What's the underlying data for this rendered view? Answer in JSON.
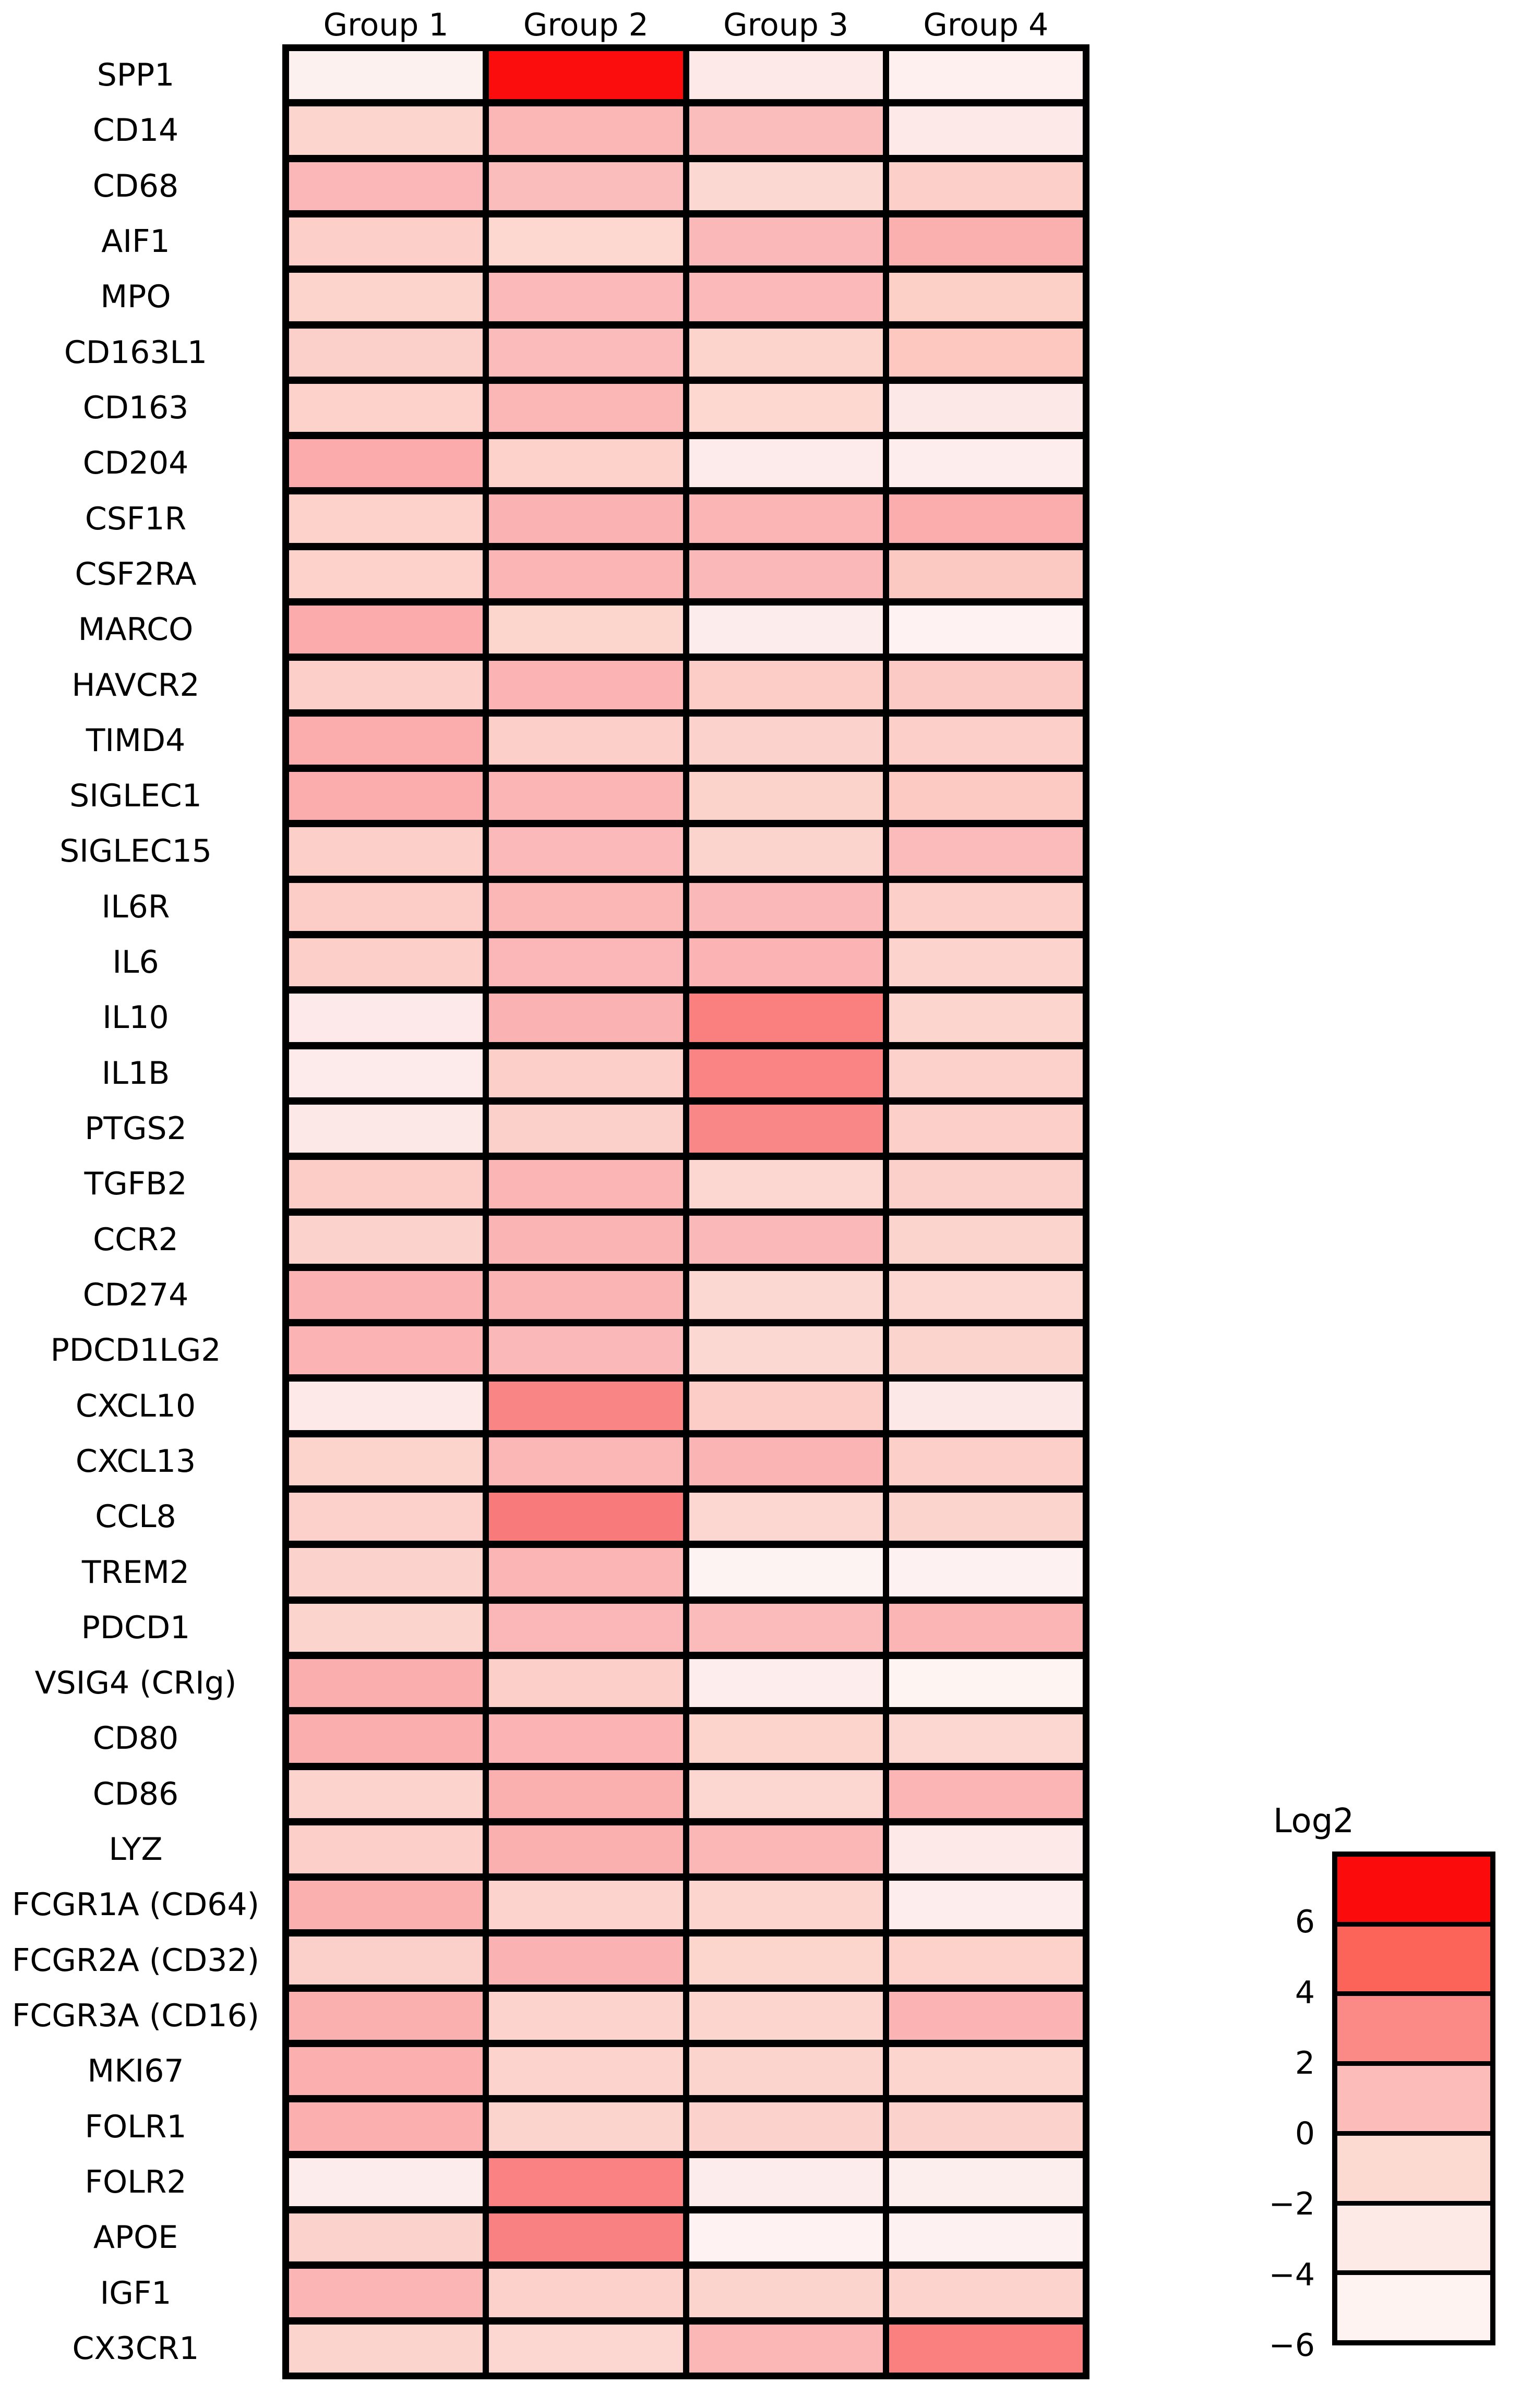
{
  "figure": {
    "background": "#ffffff",
    "grid_line_color": "#000000"
  },
  "chart_data": {
    "type": "heatmap",
    "title": "",
    "xlabel": "",
    "ylabel": "",
    "columns": [
      "Group 1",
      "Group 2",
      "Group 3",
      "Group 4"
    ],
    "value_scale": "Log2",
    "value_range": [
      -7,
      7
    ],
    "rows": [
      {
        "gene": "SPP1",
        "values": [
          -4.6,
          7.0,
          -2.9,
          -4.5
        ],
        "colors": [
          "#FDF1F0",
          "#FB0D0D",
          "#FDE9E8",
          "#FDF0EF"
        ]
      },
      {
        "gene": "CD14",
        "values": [
          -1.0,
          1.3,
          1.0,
          -2.9
        ],
        "colors": [
          "#FCD6CE",
          "#FBB6B6",
          "#FBBCBC",
          "#FDE9E8"
        ]
      },
      {
        "gene": "CD68",
        "values": [
          1.2,
          1.0,
          -1.1,
          -0.6
        ],
        "colors": [
          "#FBB7B7",
          "#FBBCBC",
          "#FCD8D2",
          "#FCD0C8"
        ]
      },
      {
        "gene": "AIF1",
        "values": [
          -0.6,
          -1.1,
          1.2,
          1.6
        ],
        "colors": [
          "#FCD0C8",
          "#FCD8D0",
          "#FBB8B8",
          "#FBB0B0"
        ]
      },
      {
        "gene": "MPO",
        "values": [
          -0.9,
          1.1,
          1.1,
          -0.5
        ],
        "colors": [
          "#FCD4CC",
          "#FBB9B9",
          "#FBB9B9",
          "#FCCFC7"
        ]
      },
      {
        "gene": "CD163L1",
        "values": [
          -0.6,
          1.0,
          -0.9,
          -0.1
        ],
        "colors": [
          "#FCD0CA",
          "#FBBBBB",
          "#FCD4CC",
          "#FCC8C0"
        ]
      },
      {
        "gene": "CD163",
        "values": [
          -0.7,
          1.3,
          -1.1,
          -2.8
        ],
        "colors": [
          "#FCD2CA",
          "#FBB6B6",
          "#FCD8D0",
          "#FDE8E8"
        ]
      },
      {
        "gene": "CD204",
        "values": [
          1.8,
          -0.7,
          -3.1,
          -3.5
        ],
        "colors": [
          "#FBABAB",
          "#FCD2CA",
          "#FDEBEB",
          "#FDEDED"
        ]
      },
      {
        "gene": "CSF1R",
        "values": [
          -0.7,
          1.6,
          1.4,
          1.8
        ],
        "colors": [
          "#FCD2CA",
          "#FBB2B2",
          "#FBB5B5",
          "#FBACAC"
        ]
      },
      {
        "gene": "CSF2RA",
        "values": [
          -0.7,
          1.4,
          1.2,
          -0.1
        ],
        "colors": [
          "#FCD2CA",
          "#FBB5B5",
          "#FBB8B8",
          "#FCC8C2"
        ]
      },
      {
        "gene": "MARCO",
        "values": [
          1.8,
          -1.0,
          -3.3,
          -4.8
        ],
        "colors": [
          "#FBABAB",
          "#FCD5CD",
          "#FDECEC",
          "#FEF2F2"
        ]
      },
      {
        "gene": "HAVCR2",
        "values": [
          -0.6,
          1.5,
          -0.3,
          -0.2
        ],
        "colors": [
          "#FCD0C8",
          "#FBB3B3",
          "#FCCCC6",
          "#FCCAC4"
        ]
      },
      {
        "gene": "TIMD4",
        "values": [
          1.8,
          -0.5,
          -0.8,
          -0.5
        ],
        "colors": [
          "#FBACAC",
          "#FCCFC9",
          "#FCD2CC",
          "#FCCFC9"
        ]
      },
      {
        "gene": "SIGLEC1",
        "values": [
          1.8,
          1.4,
          -0.8,
          -0.2
        ],
        "colors": [
          "#FBACAC",
          "#FBB5B5",
          "#FCD3CB",
          "#FCC9C3"
        ]
      },
      {
        "gene": "SIGLEC15",
        "values": [
          -0.5,
          1.1,
          -0.9,
          1.0
        ],
        "colors": [
          "#FCCFC9",
          "#FBB9B9",
          "#FCD4CE",
          "#FBBBBB"
        ]
      },
      {
        "gene": "IL6R",
        "values": [
          -0.3,
          1.3,
          1.2,
          -0.5
        ],
        "colors": [
          "#FCCCC6",
          "#FBB6B6",
          "#FBB8B8",
          "#FCCFC9"
        ]
      },
      {
        "gene": "IL6",
        "values": [
          -0.5,
          1.3,
          1.5,
          -0.8
        ],
        "colors": [
          "#FCCFC9",
          "#FBB7B7",
          "#FBB3B3",
          "#FCD3CD"
        ]
      },
      {
        "gene": "IL10",
        "values": [
          -2.9,
          1.6,
          3.6,
          -1.0
        ],
        "colors": [
          "#FDE9E9",
          "#FBB2B2",
          "#FA8080",
          "#FCD5CF"
        ]
      },
      {
        "gene": "IL1B",
        "values": [
          -3.0,
          -0.5,
          3.5,
          -0.7
        ],
        "colors": [
          "#FDEAEA",
          "#FCCFC9",
          "#FA8484",
          "#FCD1CB"
        ]
      },
      {
        "gene": "PTGS2",
        "values": [
          -2.8,
          -0.6,
          3.4,
          -0.5
        ],
        "colors": [
          "#FDE8E8",
          "#FCD0CA",
          "#FA8787",
          "#FCCFC9"
        ]
      },
      {
        "gene": "TGFB2",
        "values": [
          -0.4,
          1.4,
          -1.0,
          -0.6
        ],
        "colors": [
          "#FCCDC7",
          "#FBB5B5",
          "#FCD6D0",
          "#FCD0CA"
        ]
      },
      {
        "gene": "CCR2",
        "values": [
          -0.8,
          1.4,
          1.2,
          -0.9
        ],
        "colors": [
          "#FCD2CC",
          "#FBB4B4",
          "#FBB8B8",
          "#FCD4CE"
        ]
      },
      {
        "gene": "CD274",
        "values": [
          1.5,
          1.4,
          -1.1,
          -1.0
        ],
        "colors": [
          "#FBB2B2",
          "#FBB4B4",
          "#FCD8D2",
          "#FCD6D0"
        ]
      },
      {
        "gene": "PDCD1LG2",
        "values": [
          1.5,
          1.2,
          -1.1,
          -0.9
        ],
        "colors": [
          "#FBB3B3",
          "#FBB8B8",
          "#FCD8D2",
          "#FCD4CE"
        ]
      },
      {
        "gene": "CXCL10",
        "values": [
          -2.9,
          3.5,
          -0.4,
          -2.8
        ],
        "colors": [
          "#FDE9E8",
          "#FA8585",
          "#FCCDC7",
          "#FDE8E8"
        ]
      },
      {
        "gene": "CXCL13",
        "values": [
          -0.8,
          1.3,
          1.4,
          -0.5
        ],
        "colors": [
          "#FCD4CC",
          "#FBB6B6",
          "#FBB4B4",
          "#FCCFC9"
        ]
      },
      {
        "gene": "CCL8",
        "values": [
          -0.7,
          3.8,
          -1.0,
          -0.9
        ],
        "colors": [
          "#FCD1CB",
          "#F97A7A",
          "#FCD7D1",
          "#FCD4CE"
        ]
      },
      {
        "gene": "TREM2",
        "values": [
          -0.8,
          1.4,
          -4.9,
          -4.6
        ],
        "colors": [
          "#FCD2CC",
          "#FBB5B5",
          "#FEF3F3",
          "#FEF1F1"
        ]
      },
      {
        "gene": "PDCD1",
        "values": [
          -0.9,
          1.3,
          1.0,
          1.4
        ],
        "colors": [
          "#FCD4CE",
          "#FBB7B7",
          "#FBBBBB",
          "#FBB5B5"
        ]
      },
      {
        "gene": "VSIG4 (CRIg)",
        "values": [
          1.7,
          -0.5,
          -3.7,
          -5.0
        ],
        "colors": [
          "#FBAEAE",
          "#FCCFC9",
          "#FDEEED",
          "#FEF4F2"
        ]
      },
      {
        "gene": "CD80",
        "values": [
          1.7,
          1.5,
          -0.9,
          -1.0
        ],
        "colors": [
          "#FBAEAE",
          "#FBB3B3",
          "#FCD4CC",
          "#FCD7D1"
        ]
      },
      {
        "gene": "CD86",
        "values": [
          -0.8,
          1.6,
          -1.0,
          1.4
        ],
        "colors": [
          "#FCD3CD",
          "#FBB0B0",
          "#FCD6D0",
          "#FBB5B5"
        ]
      },
      {
        "gene": "LYZ",
        "values": [
          -0.5,
          1.6,
          1.3,
          -2.9
        ],
        "colors": [
          "#FCCFC9",
          "#FBB0B0",
          "#FBB6B6",
          "#FDE9E8"
        ]
      },
      {
        "gene": "FCGR1A (CD64)",
        "values": [
          1.6,
          -0.8,
          -1.0,
          -3.8
        ],
        "colors": [
          "#FBB0B0",
          "#FCD3CD",
          "#FCD6CE",
          "#FDEEED"
        ]
      },
      {
        "gene": "FCGR2A (CD32)",
        "values": [
          -0.6,
          1.6,
          -1.0,
          -0.8
        ],
        "colors": [
          "#FCD0CA",
          "#FBB2B2",
          "#FCD5CD",
          "#FCD2CA"
        ]
      },
      {
        "gene": "FCGR3A (CD16)",
        "values": [
          1.6,
          -0.8,
          -1.0,
          1.5
        ],
        "colors": [
          "#FBB0B0",
          "#FCD3CD",
          "#FCD5CF",
          "#FBB3B3"
        ]
      },
      {
        "gene": "MKI67",
        "values": [
          1.7,
          -0.8,
          -0.9,
          -1.0
        ],
        "colors": [
          "#FBAFAF",
          "#FCD3CD",
          "#FCD4CE",
          "#FCD5CF"
        ]
      },
      {
        "gene": "FOLR1",
        "values": [
          1.7,
          -0.9,
          -0.8,
          -0.8
        ],
        "colors": [
          "#FBAFAF",
          "#FCD4CE",
          "#FCD2CC",
          "#FCD2CC"
        ]
      },
      {
        "gene": "FOLR2",
        "values": [
          -3.3,
          3.6,
          -3.3,
          -3.7
        ],
        "colors": [
          "#FDECEC",
          "#FA8282",
          "#FDECEC",
          "#FDEEEE"
        ]
      },
      {
        "gene": "APOE",
        "values": [
          -0.8,
          3.6,
          -4.8,
          -4.6
        ],
        "colors": [
          "#FCD2CC",
          "#FA8181",
          "#FEF2F2",
          "#FEF1F1"
        ]
      },
      {
        "gene": "IGF1",
        "values": [
          1.4,
          -0.7,
          -0.9,
          -0.8
        ],
        "colors": [
          "#FBB5B5",
          "#FCD1CB",
          "#FCD4CE",
          "#FCD3CD"
        ]
      },
      {
        "gene": "CX3CR1",
        "values": [
          -0.9,
          -1.0,
          1.3,
          3.6
        ],
        "colors": [
          "#FCD4CE",
          "#FCD6D0",
          "#FBB6B6",
          "#FA8080"
        ]
      }
    ],
    "legend": {
      "title": "Log2",
      "tick_labels": [
        "6",
        "4",
        "2",
        "0",
        "−2",
        "−4",
        "−6"
      ],
      "block_colors": [
        "#FB0B0B",
        "#FC6359",
        "#FB8A87",
        "#FCBCBA",
        "#FCD9D1",
        "#FDE9E6",
        "#FEF3F1"
      ],
      "legend_position": "right"
    }
  }
}
